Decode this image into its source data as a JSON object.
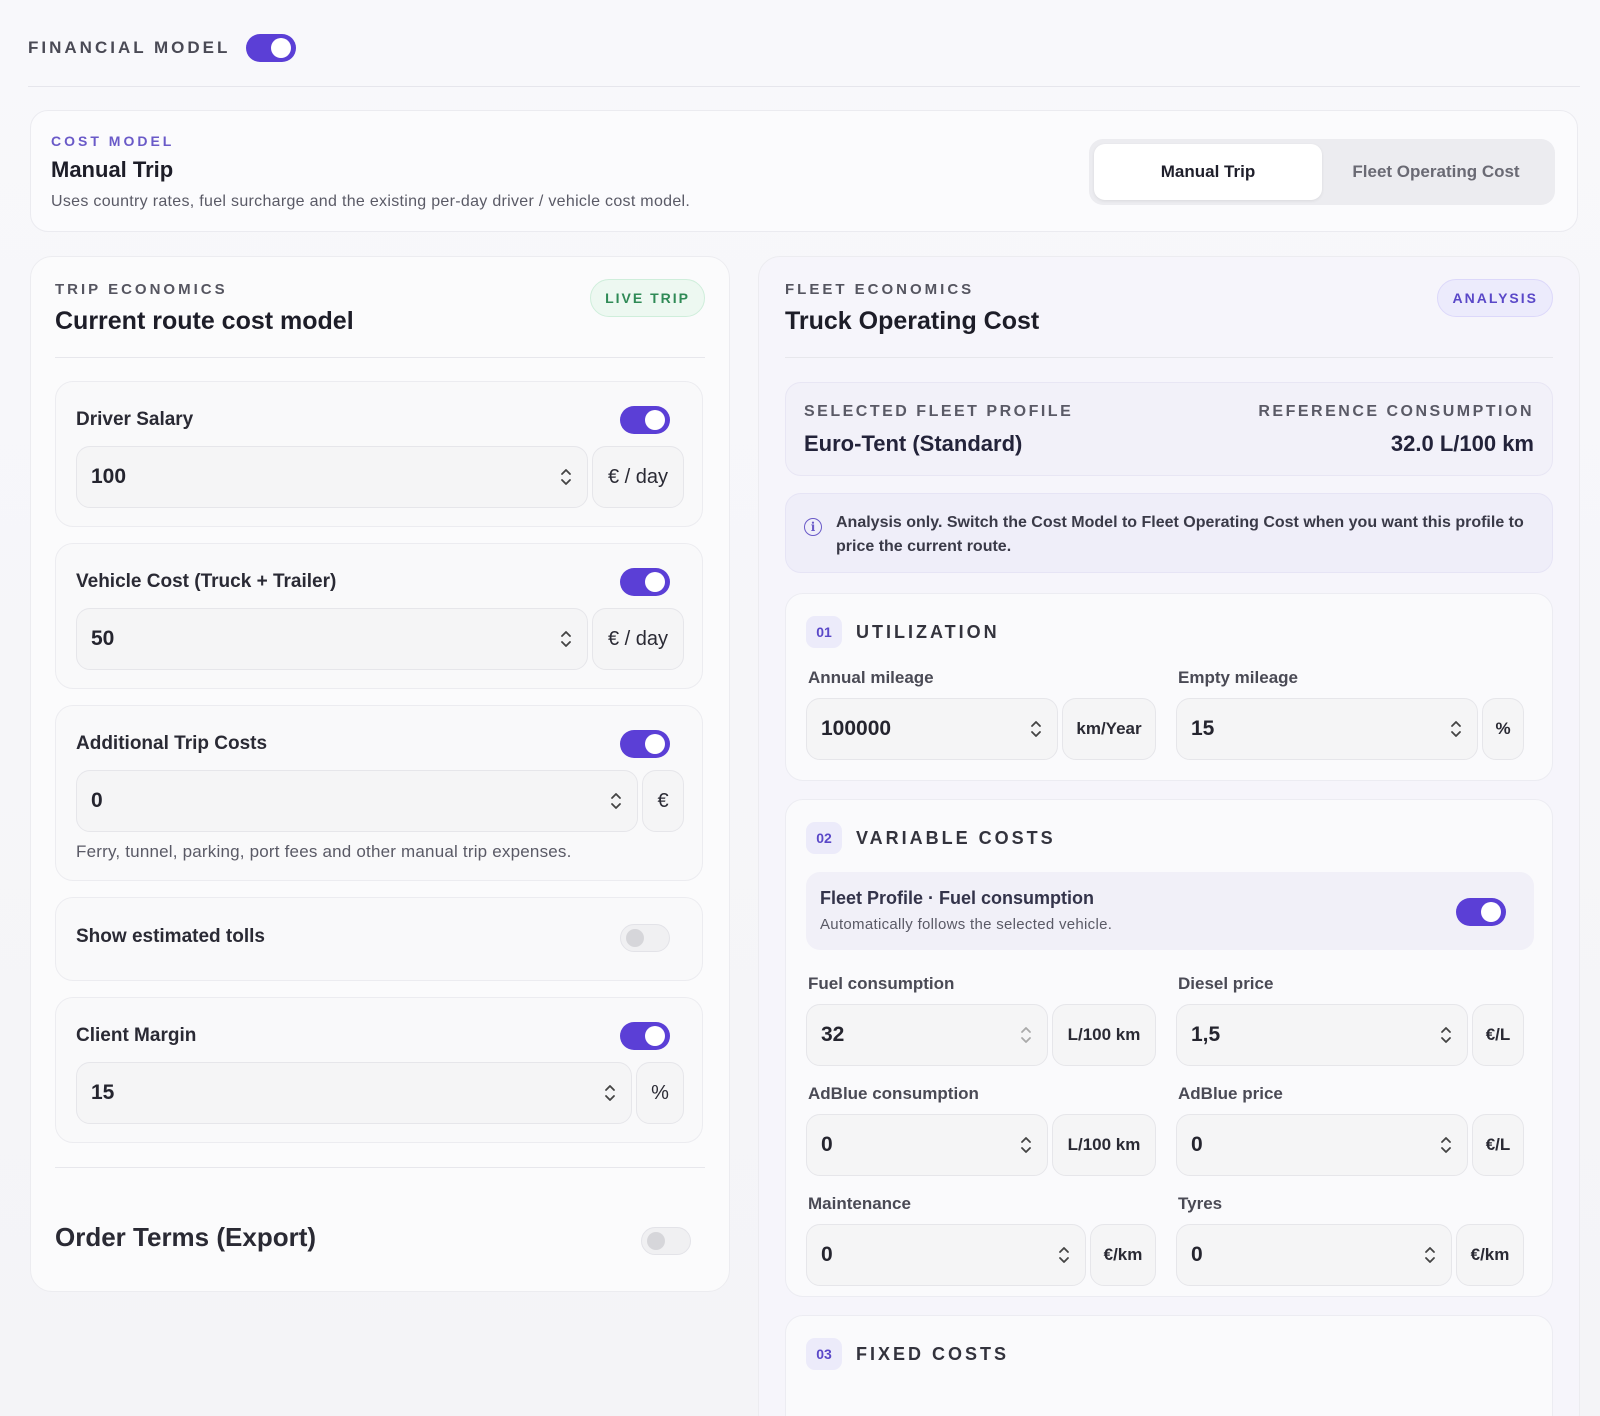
{
  "financial_model": {
    "label": "FINANCIAL MODEL",
    "enabled": true
  },
  "cost_model": {
    "eyebrow": "COST MODEL",
    "title": "Manual Trip",
    "description": "Uses country rates, fuel surcharge and the existing per-day driver / vehicle cost model.",
    "options": [
      "Manual Trip",
      "Fleet Operating Cost"
    ],
    "selected": "Manual Trip"
  },
  "trip": {
    "eyebrow": "TRIP ECONOMICS",
    "title": "Current route cost model",
    "badge": "LIVE TRIP",
    "driver_salary": {
      "label": "Driver Salary",
      "value": "100",
      "unit": "€ / day",
      "enabled": true
    },
    "vehicle_cost": {
      "label": "Vehicle Cost (Truck + Trailer)",
      "value": "50",
      "unit": "€ / day",
      "enabled": true
    },
    "additional": {
      "label": "Additional Trip Costs",
      "value": "0",
      "unit": "€",
      "hint": "Ferry, tunnel, parking, port fees and other manual trip expenses.",
      "enabled": true
    },
    "tolls": {
      "label": "Show estimated tolls",
      "enabled": false
    },
    "margin": {
      "label": "Client Margin",
      "value": "15",
      "unit": "%",
      "enabled": true
    },
    "order_terms": {
      "label": "Order Terms (Export)",
      "enabled": false
    }
  },
  "fleet": {
    "eyebrow": "FLEET ECONOMICS",
    "title": "Truck Operating Cost",
    "badge": "ANALYSIS",
    "profile_key": "SELECTED FLEET PROFILE",
    "profile_value": "Euro-Tent (Standard)",
    "consumption_key": "REFERENCE CONSUMPTION",
    "consumption_value": "32.0 L/100 km",
    "info": "Analysis only. Switch the Cost Model to Fleet Operating Cost when you want this profile to price the current route.",
    "utilization": {
      "num": "01",
      "title": "UTILIZATION",
      "annual_label": "Annual mileage",
      "annual_value": "100000",
      "annual_unit": "km/Year",
      "empty_label": "Empty mileage",
      "empty_value": "15",
      "empty_unit": "%"
    },
    "variable": {
      "num": "02",
      "title": "VARIABLE COSTS",
      "fp_title": "Fleet Profile · Fuel consumption",
      "fp_sub": "Automatically follows the selected vehicle.",
      "fp_enabled": true,
      "fuel_label": "Fuel consumption",
      "fuel_value": "32",
      "fuel_unit": "L/100 km",
      "diesel_label": "Diesel price",
      "diesel_value": "1,5",
      "diesel_unit": "€/L",
      "adblue_c_label": "AdBlue consumption",
      "adblue_c_value": "0",
      "adblue_c_unit": "L/100 km",
      "adblue_p_label": "AdBlue price",
      "adblue_p_value": "0",
      "adblue_p_unit": "€/L",
      "maint_label": "Maintenance",
      "maint_value": "0",
      "maint_unit": "€/km",
      "tyres_label": "Tyres",
      "tyres_value": "0",
      "tyres_unit": "€/km"
    },
    "fixed": {
      "num": "03",
      "title": "FIXED COSTS"
    }
  },
  "colors": {
    "accent": "#5b3fd6",
    "live_green": "#2f8a56",
    "analysis_purple": "#5a48c8"
  }
}
